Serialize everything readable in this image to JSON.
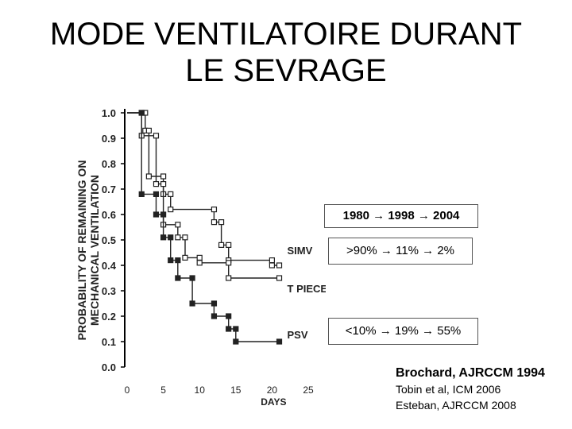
{
  "title": {
    "line1": "MODE VENTILATOIRE DURANT",
    "line2": "LE SEVRAGE"
  },
  "chart_data": {
    "type": "line",
    "ylabel_line1": "PROBABILITY OF REMAINING ON",
    "ylabel_line2": "MECHANICAL VENTILATION",
    "xlabel": "DAYS",
    "xlim": [
      0,
      25
    ],
    "ylim": [
      0,
      1.0
    ],
    "xticks": [
      0,
      5,
      10,
      15,
      20,
      25
    ],
    "yticks": [
      "0.0",
      "0.1",
      "0.2",
      "0.3",
      "0.4",
      "0.5",
      "0.6",
      "0.7",
      "0.8",
      "0.9",
      "1.0"
    ],
    "series": [
      {
        "name": "SIMV",
        "marker": "open",
        "points": [
          [
            0,
            1.0
          ],
          [
            2.5,
            1.0
          ],
          [
            2.5,
            0.93
          ],
          [
            3,
            0.93
          ],
          [
            3,
            0.75
          ],
          [
            5,
            0.75
          ],
          [
            5,
            0.68
          ],
          [
            6,
            0.68
          ],
          [
            6,
            0.62
          ],
          [
            12,
            0.62
          ],
          [
            12,
            0.57
          ],
          [
            13,
            0.57
          ],
          [
            13,
            0.48
          ],
          [
            14,
            0.48
          ],
          [
            14,
            0.42
          ],
          [
            20,
            0.42
          ],
          [
            20,
            0.4
          ],
          [
            21,
            0.4
          ]
        ]
      },
      {
        "name": "T PIECE",
        "marker": "open",
        "points": [
          [
            0,
            1.0
          ],
          [
            2,
            1.0
          ],
          [
            2,
            0.91
          ],
          [
            4,
            0.91
          ],
          [
            4,
            0.72
          ],
          [
            5,
            0.72
          ],
          [
            5,
            0.56
          ],
          [
            7,
            0.56
          ],
          [
            7,
            0.51
          ],
          [
            8,
            0.51
          ],
          [
            8,
            0.43
          ],
          [
            10,
            0.43
          ],
          [
            10,
            0.41
          ],
          [
            14,
            0.41
          ],
          [
            14,
            0.35
          ],
          [
            21,
            0.35
          ]
        ]
      },
      {
        "name": "PSV",
        "marker": "filled",
        "points": [
          [
            0,
            1.0
          ],
          [
            2,
            1.0
          ],
          [
            2,
            0.68
          ],
          [
            4,
            0.68
          ],
          [
            4,
            0.6
          ],
          [
            5,
            0.6
          ],
          [
            5,
            0.51
          ],
          [
            6,
            0.51
          ],
          [
            6,
            0.42
          ],
          [
            7,
            0.42
          ],
          [
            7,
            0.35
          ],
          [
            9,
            0.35
          ],
          [
            9,
            0.25
          ],
          [
            12,
            0.25
          ],
          [
            12,
            0.2
          ],
          [
            14,
            0.2
          ],
          [
            14,
            0.15
          ],
          [
            15,
            0.15
          ],
          [
            15,
            0.1
          ],
          [
            21,
            0.1
          ]
        ]
      }
    ]
  },
  "boxes": {
    "years": "1980 → 1998 → 2004",
    "simv": ">90% → 11% → 2%",
    "psv": "<10% → 19% → 55%"
  },
  "refs": {
    "main": "Brochard, AJRCCM 1994",
    "ref2": "Tobin et al, ICM 2006",
    "ref3": "Esteban, AJRCCM 2008"
  }
}
